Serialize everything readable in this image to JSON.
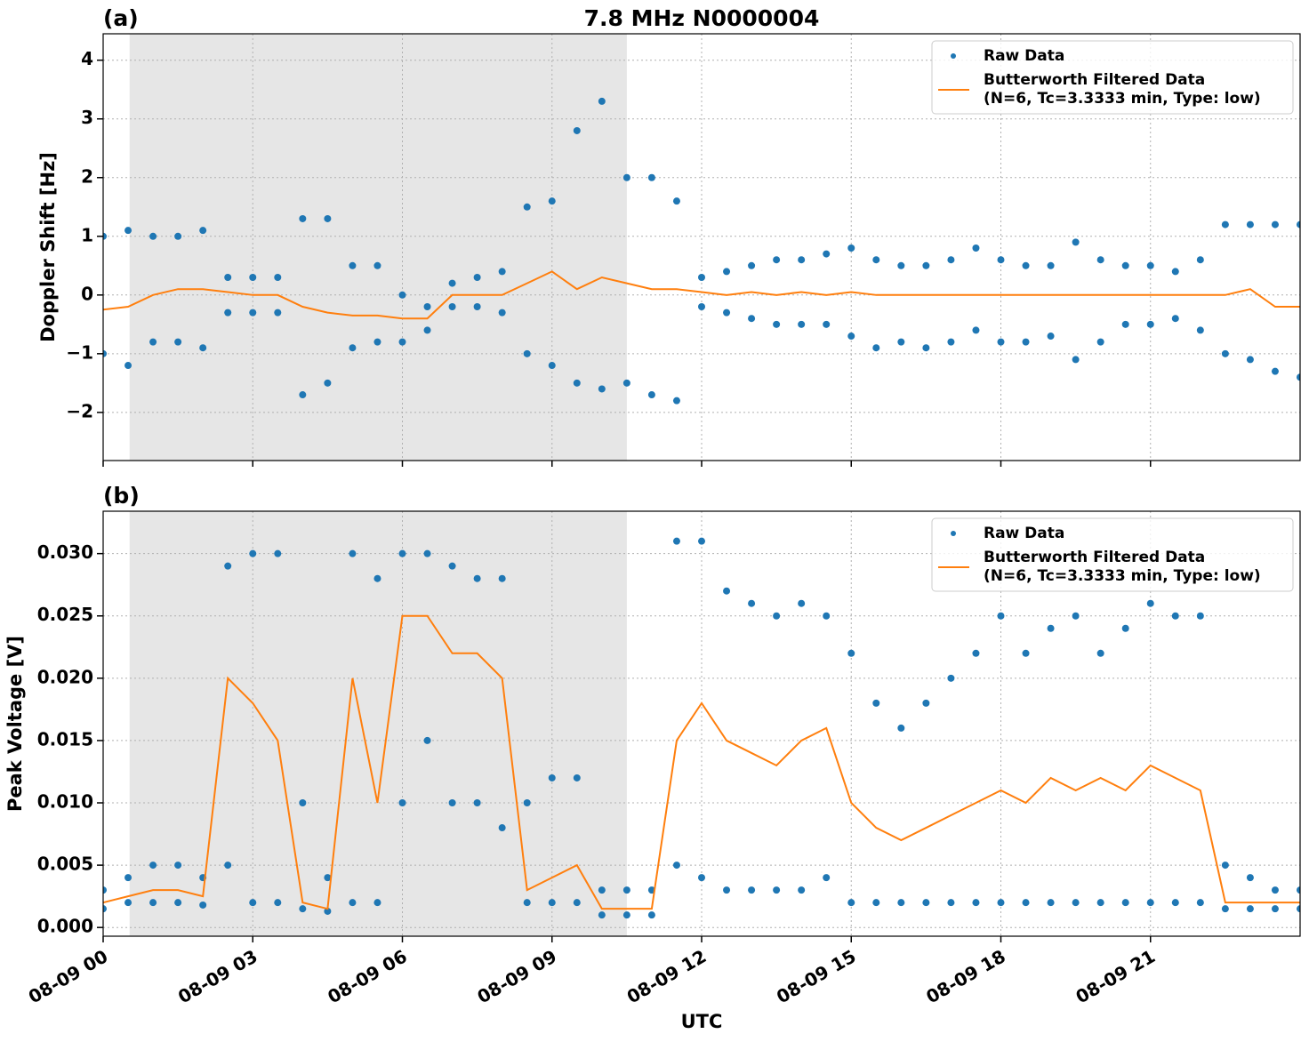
{
  "chart_data": [
    {
      "type": "line",
      "panel_label": "(a)",
      "title": "7.8 MHz N0000004",
      "ylabel": "Doppler Shift [Hz]",
      "xlim": [
        0,
        24
      ],
      "xticks": [
        0,
        3,
        6,
        9,
        12,
        15,
        18,
        21
      ],
      "ylim": [
        -2.82,
        4.45
      ],
      "yticks": [
        {
          "value": -2,
          "label": "−2"
        },
        {
          "value": -1,
          "label": "−1"
        },
        0,
        1,
        2,
        3,
        4
      ],
      "grid": true,
      "legend": "upper right",
      "shade": [
        0.53,
        10.5
      ],
      "x": [
        0,
        0.5,
        1,
        1.5,
        2,
        2.5,
        3,
        3.5,
        4,
        4.5,
        5,
        5.5,
        6,
        6.5,
        7,
        7.5,
        8,
        8.5,
        9,
        9.5,
        10,
        10.5,
        11,
        11.5,
        12,
        12.5,
        13,
        13.5,
        14,
        14.5,
        15,
        15.5,
        16,
        16.5,
        17,
        17.5,
        18,
        18.5,
        19,
        19.5,
        20,
        20.5,
        21,
        21.5,
        22,
        22.5,
        23,
        23.5,
        24
      ],
      "series": [
        {
          "name": "Raw Data",
          "color": "#1f77b4",
          "mode": "markers",
          "x": [
            0,
            0,
            0.5,
            0.5,
            1,
            1,
            1.5,
            1.5,
            2,
            2,
            2.5,
            2.5,
            3,
            3,
            3.5,
            3.5,
            4,
            4,
            4.5,
            4.5,
            5,
            5,
            5.5,
            5.5,
            6,
            6,
            6.5,
            6.5,
            7,
            7,
            7.5,
            7.5,
            8,
            8,
            8.5,
            8.5,
            9,
            9,
            9.5,
            9.5,
            10,
            10,
            10.5,
            10.5,
            11,
            11,
            11.5,
            11.5,
            12,
            12,
            12.5,
            12.5,
            13,
            13,
            13.5,
            13.5,
            14,
            14,
            14.5,
            14.5,
            15,
            15,
            15.5,
            15.5,
            16,
            16,
            16.5,
            16.5,
            17,
            17,
            17.5,
            17.5,
            18,
            18,
            18.5,
            18.5,
            19,
            19,
            19.5,
            19.5,
            20,
            20,
            20.5,
            20.5,
            21,
            21,
            21.5,
            21.5,
            22,
            22,
            22.5,
            22.5,
            23,
            23,
            23.5,
            23.5,
            24,
            24
          ],
          "values": [
            1.0,
            -1.0,
            1.1,
            -1.2,
            1.0,
            -0.8,
            1.0,
            -0.8,
            1.1,
            -0.9,
            0.3,
            -0.3,
            0.3,
            -0.3,
            0.3,
            -0.3,
            1.3,
            -1.7,
            1.3,
            -1.5,
            0.5,
            -0.9,
            0.5,
            -0.8,
            0.0,
            -0.8,
            -0.2,
            -0.6,
            0.2,
            -0.2,
            0.3,
            -0.2,
            0.4,
            -0.3,
            1.5,
            -1.0,
            1.6,
            -1.2,
            2.8,
            -1.5,
            3.3,
            -1.6,
            2.0,
            -1.5,
            2.0,
            -1.7,
            1.6,
            -1.8,
            0.3,
            -0.2,
            0.4,
            -0.3,
            0.5,
            -0.4,
            0.6,
            -0.5,
            0.6,
            -0.5,
            0.7,
            -0.5,
            0.8,
            -0.7,
            0.6,
            -0.9,
            0.5,
            -0.8,
            0.5,
            -0.9,
            0.6,
            -0.8,
            0.8,
            -0.6,
            0.6,
            -0.8,
            0.5,
            -0.8,
            0.5,
            -0.7,
            0.9,
            -1.1,
            0.6,
            -0.8,
            0.5,
            -0.5,
            0.5,
            -0.5,
            0.4,
            -0.4,
            0.6,
            -0.6,
            1.2,
            -1.0,
            1.2,
            -1.1,
            1.2,
            -1.3,
            1.2,
            -1.4
          ]
        },
        {
          "name": [
            "Butterworth Filtered Data",
            "(N=6, Tc=3.3333 min, Type: low)"
          ],
          "color": "#ff7f0e",
          "mode": "line",
          "values": [
            -0.25,
            -0.2,
            0.0,
            0.1,
            0.1,
            0.05,
            0.0,
            0.0,
            -0.2,
            -0.3,
            -0.35,
            -0.35,
            -0.4,
            -0.4,
            0.0,
            0.0,
            0.0,
            0.2,
            0.4,
            0.1,
            0.3,
            0.2,
            0.1,
            0.1,
            0.05,
            0.0,
            0.05,
            0.0,
            0.05,
            0.0,
            0.05,
            0.0,
            0.0,
            0.0,
            0.0,
            0.0,
            0.0,
            0.0,
            0.0,
            0.0,
            0.0,
            0.0,
            0.0,
            0.0,
            0.0,
            0.0,
            0.1,
            -0.2,
            -0.2
          ]
        }
      ]
    },
    {
      "type": "line",
      "panel_label": "(b)",
      "ylabel": "Peak Voltage [V]",
      "xlabel": "UTC",
      "xlim": [
        0,
        24
      ],
      "xticks": [
        {
          "value": 0,
          "label": "08-09 00"
        },
        {
          "value": 3,
          "label": "08-09 03"
        },
        {
          "value": 6,
          "label": "08-09 06"
        },
        {
          "value": 9,
          "label": "08-09 09"
        },
        {
          "value": 12,
          "label": "08-09 12"
        },
        {
          "value": 15,
          "label": "08-09 15"
        },
        {
          "value": 18,
          "label": "08-09 18"
        },
        {
          "value": 21,
          "label": "08-09 21"
        }
      ],
      "ylim": [
        -0.0007,
        0.0334
      ],
      "yticks": [
        {
          "value": 0,
          "label": "0.000"
        },
        {
          "value": 0.005,
          "label": "0.005"
        },
        {
          "value": 0.01,
          "label": "0.010"
        },
        {
          "value": 0.015,
          "label": "0.015"
        },
        {
          "value": 0.02,
          "label": "0.020"
        },
        {
          "value": 0.025,
          "label": "0.025"
        },
        {
          "value": 0.03,
          "label": "0.030"
        }
      ],
      "grid": true,
      "legend": "upper right",
      "shade": [
        0.53,
        10.5
      ],
      "x": [
        0,
        0.5,
        1,
        1.5,
        2,
        2.5,
        3,
        3.5,
        4,
        4.5,
        5,
        5.5,
        6,
        6.5,
        7,
        7.5,
        8,
        8.5,
        9,
        9.5,
        10,
        10.5,
        11,
        11.5,
        12,
        12.5,
        13,
        13.5,
        14,
        14.5,
        15,
        15.5,
        16,
        16.5,
        17,
        17.5,
        18,
        18.5,
        19,
        19.5,
        20,
        20.5,
        21,
        21.5,
        22,
        22.5,
        23,
        23.5,
        24
      ],
      "series": [
        {
          "name": "Raw Data",
          "color": "#1f77b4",
          "mode": "markers",
          "x": [
            0,
            0,
            0.5,
            0.5,
            1,
            1,
            1.5,
            1.5,
            2,
            2,
            2.5,
            2.5,
            3,
            3,
            3.5,
            3.5,
            4,
            4,
            4.5,
            4.5,
            5,
            5,
            5.5,
            5.5,
            6,
            6,
            6.5,
            6.5,
            7,
            7,
            7.5,
            7.5,
            8,
            8,
            8.5,
            8.5,
            9,
            9,
            9.5,
            9.5,
            10,
            10,
            10.5,
            10.5,
            11,
            11,
            11.5,
            11.5,
            12,
            12,
            12.5,
            12.5,
            13,
            13,
            13.5,
            13.5,
            14,
            14,
            14.5,
            14.5,
            15,
            15,
            15.5,
            15.5,
            16,
            16,
            16.5,
            16.5,
            17,
            17,
            17.5,
            17.5,
            18,
            18,
            18.5,
            18.5,
            19,
            19,
            19.5,
            19.5,
            20,
            20,
            20.5,
            20.5,
            21,
            21,
            21.5,
            21.5,
            22,
            22,
            22.5,
            22.5,
            23,
            23,
            23.5,
            23.5,
            24,
            24
          ],
          "values": [
            0.003,
            0.0015,
            0.004,
            0.002,
            0.005,
            0.002,
            0.005,
            0.002,
            0.004,
            0.0018,
            0.029,
            0.005,
            0.03,
            0.002,
            0.03,
            0.002,
            0.01,
            0.0015,
            0.004,
            0.0013,
            0.03,
            0.002,
            0.028,
            0.002,
            0.03,
            0.01,
            0.03,
            0.015,
            0.029,
            0.01,
            0.028,
            0.01,
            0.028,
            0.008,
            0.01,
            0.002,
            0.012,
            0.002,
            0.012,
            0.002,
            0.003,
            0.001,
            0.003,
            0.001,
            0.003,
            0.001,
            0.031,
            0.005,
            0.031,
            0.004,
            0.027,
            0.003,
            0.026,
            0.003,
            0.025,
            0.003,
            0.026,
            0.003,
            0.025,
            0.004,
            0.022,
            0.002,
            0.018,
            0.002,
            0.016,
            0.002,
            0.018,
            0.002,
            0.02,
            0.002,
            0.022,
            0.002,
            0.025,
            0.002,
            0.022,
            0.002,
            0.024,
            0.002,
            0.025,
            0.002,
            0.022,
            0.002,
            0.024,
            0.002,
            0.026,
            0.002,
            0.025,
            0.002,
            0.025,
            0.002,
            0.005,
            0.0015,
            0.004,
            0.0015,
            0.003,
            0.0015,
            0.003,
            0.0015
          ]
        },
        {
          "name": [
            "Butterworth Filtered Data",
            "(N=6, Tc=3.3333 min, Type: low)"
          ],
          "color": "#ff7f0e",
          "mode": "line",
          "values": [
            0.002,
            0.0025,
            0.003,
            0.003,
            0.0025,
            0.02,
            0.018,
            0.015,
            0.002,
            0.0015,
            0.02,
            0.01,
            0.025,
            0.025,
            0.022,
            0.022,
            0.02,
            0.003,
            0.004,
            0.005,
            0.0015,
            0.0015,
            0.0015,
            0.015,
            0.018,
            0.015,
            0.014,
            0.013,
            0.015,
            0.016,
            0.01,
            0.008,
            0.007,
            0.008,
            0.009,
            0.01,
            0.011,
            0.01,
            0.012,
            0.011,
            0.012,
            0.011,
            0.013,
            0.012,
            0.011,
            0.002,
            0.002,
            0.002,
            0.002
          ]
        }
      ]
    }
  ]
}
